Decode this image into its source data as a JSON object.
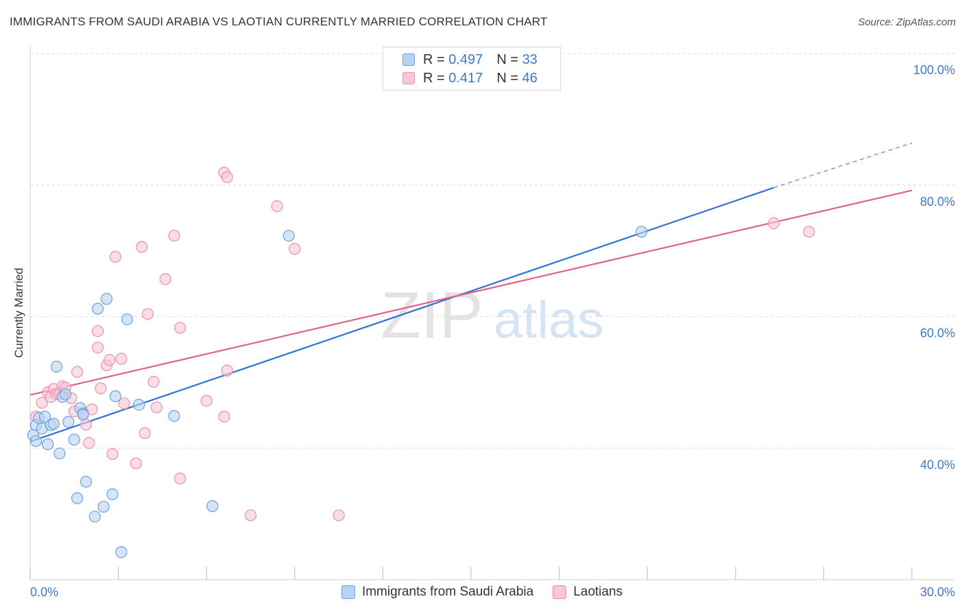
{
  "title": "IMMIGRANTS FROM SAUDI ARABIA VS LAOTIAN CURRENTLY MARRIED CORRELATION CHART",
  "source": "Source: ZipAtlas.com",
  "watermark": {
    "zip": "ZIP",
    "atlas": "atlas"
  },
  "colors": {
    "blue_fill": "#b9d3f4",
    "blue_stroke": "#6f9fdc",
    "blue_line": "#2f72d1",
    "pink_fill": "#f9c6d6",
    "pink_stroke": "#eb90ae",
    "pink_line": "#e0608e",
    "axis_text": "#3f78c9",
    "grid": "#dcdcdc"
  },
  "legend": {
    "series1": {
      "r_label": "R =",
      "r_value": "0.497",
      "n_label": "N =",
      "n_value": "33"
    },
    "series2": {
      "r_label": "R =",
      "r_value": "0.417",
      "n_label": "N =",
      "n_value": "46"
    }
  },
  "chart_data": {
    "type": "scatter",
    "title": "IMMIGRANTS FROM SAUDI ARABIA VS LAOTIAN CURRENTLY MARRIED CORRELATION CHART",
    "xlabel": "",
    "ylabel": "Currently Married",
    "xlim": [
      0,
      30
    ],
    "ylim": [
      20,
      100
    ],
    "x_tick_labels": [
      "0.0%",
      "30.0%"
    ],
    "y_ticks": [
      40,
      60,
      80,
      100
    ],
    "y_tick_labels": [
      "40.0%",
      "60.0%",
      "80.0%",
      "100.0%"
    ],
    "grid": true,
    "legend_position": "top-center and bottom",
    "series": [
      {
        "name": "Immigrants from Saudi Arabia",
        "color": "#6f9fdc",
        "trend": {
          "x": [
            0,
            25.3
          ],
          "y": [
            41.0,
            79.6
          ],
          "dashed_extension_to": [
            30,
            86.4
          ]
        },
        "points": [
          [
            0.1,
            42.0
          ],
          [
            0.2,
            43.5
          ],
          [
            0.3,
            44.6
          ],
          [
            0.4,
            43.0
          ],
          [
            0.5,
            44.8
          ],
          [
            0.6,
            40.6
          ],
          [
            0.7,
            43.5
          ],
          [
            0.9,
            52.4
          ],
          [
            1.0,
            39.2
          ],
          [
            1.1,
            47.8
          ],
          [
            1.2,
            48.2
          ],
          [
            1.3,
            44.0
          ],
          [
            1.5,
            41.3
          ],
          [
            1.6,
            32.4
          ],
          [
            1.7,
            46.1
          ],
          [
            1.8,
            45.2
          ],
          [
            1.8,
            45.1
          ],
          [
            1.9,
            34.9
          ],
          [
            2.2,
            29.6
          ],
          [
            2.3,
            61.2
          ],
          [
            2.5,
            31.1
          ],
          [
            2.6,
            62.7
          ],
          [
            2.8,
            33.0
          ],
          [
            2.9,
            47.9
          ],
          [
            3.1,
            24.2
          ],
          [
            3.3,
            59.6
          ],
          [
            3.7,
            46.6
          ],
          [
            4.9,
            44.9
          ],
          [
            6.2,
            31.2
          ],
          [
            8.8,
            72.3
          ],
          [
            20.8,
            72.9
          ],
          [
            0.2,
            41.1
          ],
          [
            0.8,
            43.7
          ]
        ]
      },
      {
        "name": "Laotians",
        "color": "#eb90ae",
        "trend": {
          "x": [
            0,
            30
          ],
          "y": [
            48.1,
            79.2
          ]
        },
        "points": [
          [
            0.2,
            44.8
          ],
          [
            0.4,
            46.9
          ],
          [
            0.6,
            48.5
          ],
          [
            0.7,
            47.8
          ],
          [
            0.8,
            49.0
          ],
          [
            0.9,
            48.2
          ],
          [
            1.0,
            48.3
          ],
          [
            1.1,
            49.4
          ],
          [
            1.2,
            49.2
          ],
          [
            1.4,
            47.6
          ],
          [
            1.5,
            45.6
          ],
          [
            1.6,
            51.6
          ],
          [
            1.8,
            45.4
          ],
          [
            1.9,
            43.6
          ],
          [
            2.0,
            40.8
          ],
          [
            2.1,
            45.9
          ],
          [
            2.3,
            55.3
          ],
          [
            2.3,
            57.8
          ],
          [
            2.4,
            49.1
          ],
          [
            2.6,
            52.6
          ],
          [
            2.7,
            53.4
          ],
          [
            2.8,
            39.1
          ],
          [
            2.9,
            69.1
          ],
          [
            3.1,
            53.6
          ],
          [
            3.2,
            46.8
          ],
          [
            3.6,
            37.7
          ],
          [
            3.8,
            70.6
          ],
          [
            3.9,
            42.3
          ],
          [
            4.0,
            60.4
          ],
          [
            4.2,
            50.1
          ],
          [
            4.3,
            46.2
          ],
          [
            4.6,
            65.7
          ],
          [
            4.9,
            72.3
          ],
          [
            5.1,
            58.3
          ],
          [
            5.1,
            35.4
          ],
          [
            6.0,
            47.2
          ],
          [
            6.6,
            44.8
          ],
          [
            6.7,
            51.8
          ],
          [
            6.6,
            81.9
          ],
          [
            6.7,
            81.2
          ],
          [
            7.5,
            29.8
          ],
          [
            8.4,
            76.8
          ],
          [
            9.0,
            70.3
          ],
          [
            10.5,
            29.8
          ],
          [
            25.3,
            74.2
          ],
          [
            26.5,
            72.9
          ]
        ]
      }
    ]
  },
  "bottom_legend": [
    "Immigrants from Saudi Arabia",
    "Laotians"
  ]
}
